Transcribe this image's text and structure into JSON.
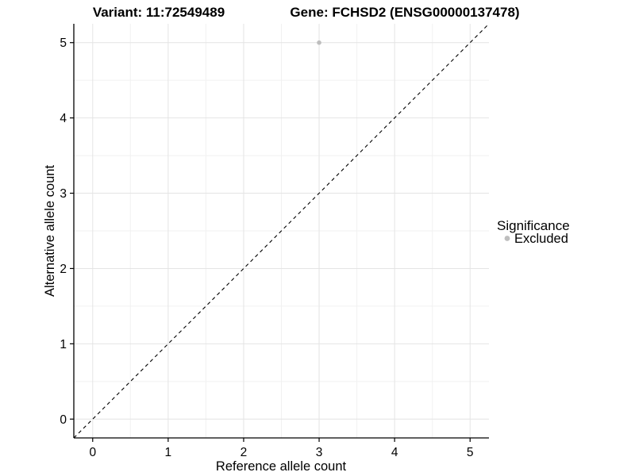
{
  "chart_data": {
    "type": "scatter",
    "titles": [
      "Variant: 11:72549489",
      "Gene: FCHSD2 (ENSG00000137478)"
    ],
    "xlabel": "Reference allele count",
    "ylabel": "Alternative allele count",
    "xlim": [
      -0.25,
      5.25
    ],
    "ylim": [
      -0.25,
      5.25
    ],
    "x_major_ticks": [
      0,
      1,
      2,
      3,
      4,
      5
    ],
    "y_major_ticks": [
      0,
      1,
      2,
      3,
      4,
      5
    ],
    "x_minor_ticks": [
      0.5,
      1.5,
      2.5,
      3.5,
      4.5
    ],
    "y_minor_ticks": [
      0.5,
      1.5,
      2.5,
      3.5,
      4.5
    ],
    "grid": "major+minor",
    "series": [
      {
        "name": "Excluded",
        "color": "#bebebe",
        "points": [
          {
            "x": 3,
            "y": 5
          }
        ]
      }
    ],
    "reference_line": {
      "type": "identity",
      "slope": 1,
      "intercept": 0,
      "style": "dashed",
      "color": "#000000"
    },
    "legend": {
      "position": "right",
      "title": "Significance",
      "entries": [
        {
          "label": "Excluded",
          "color": "#bebebe"
        }
      ]
    },
    "colors": {
      "background": "#ffffff",
      "grid_major": "#e4e4e4",
      "grid_minor": "#f1f1f1",
      "axis_line": "#000000",
      "point": "#bebebe",
      "text": "#000000"
    }
  }
}
